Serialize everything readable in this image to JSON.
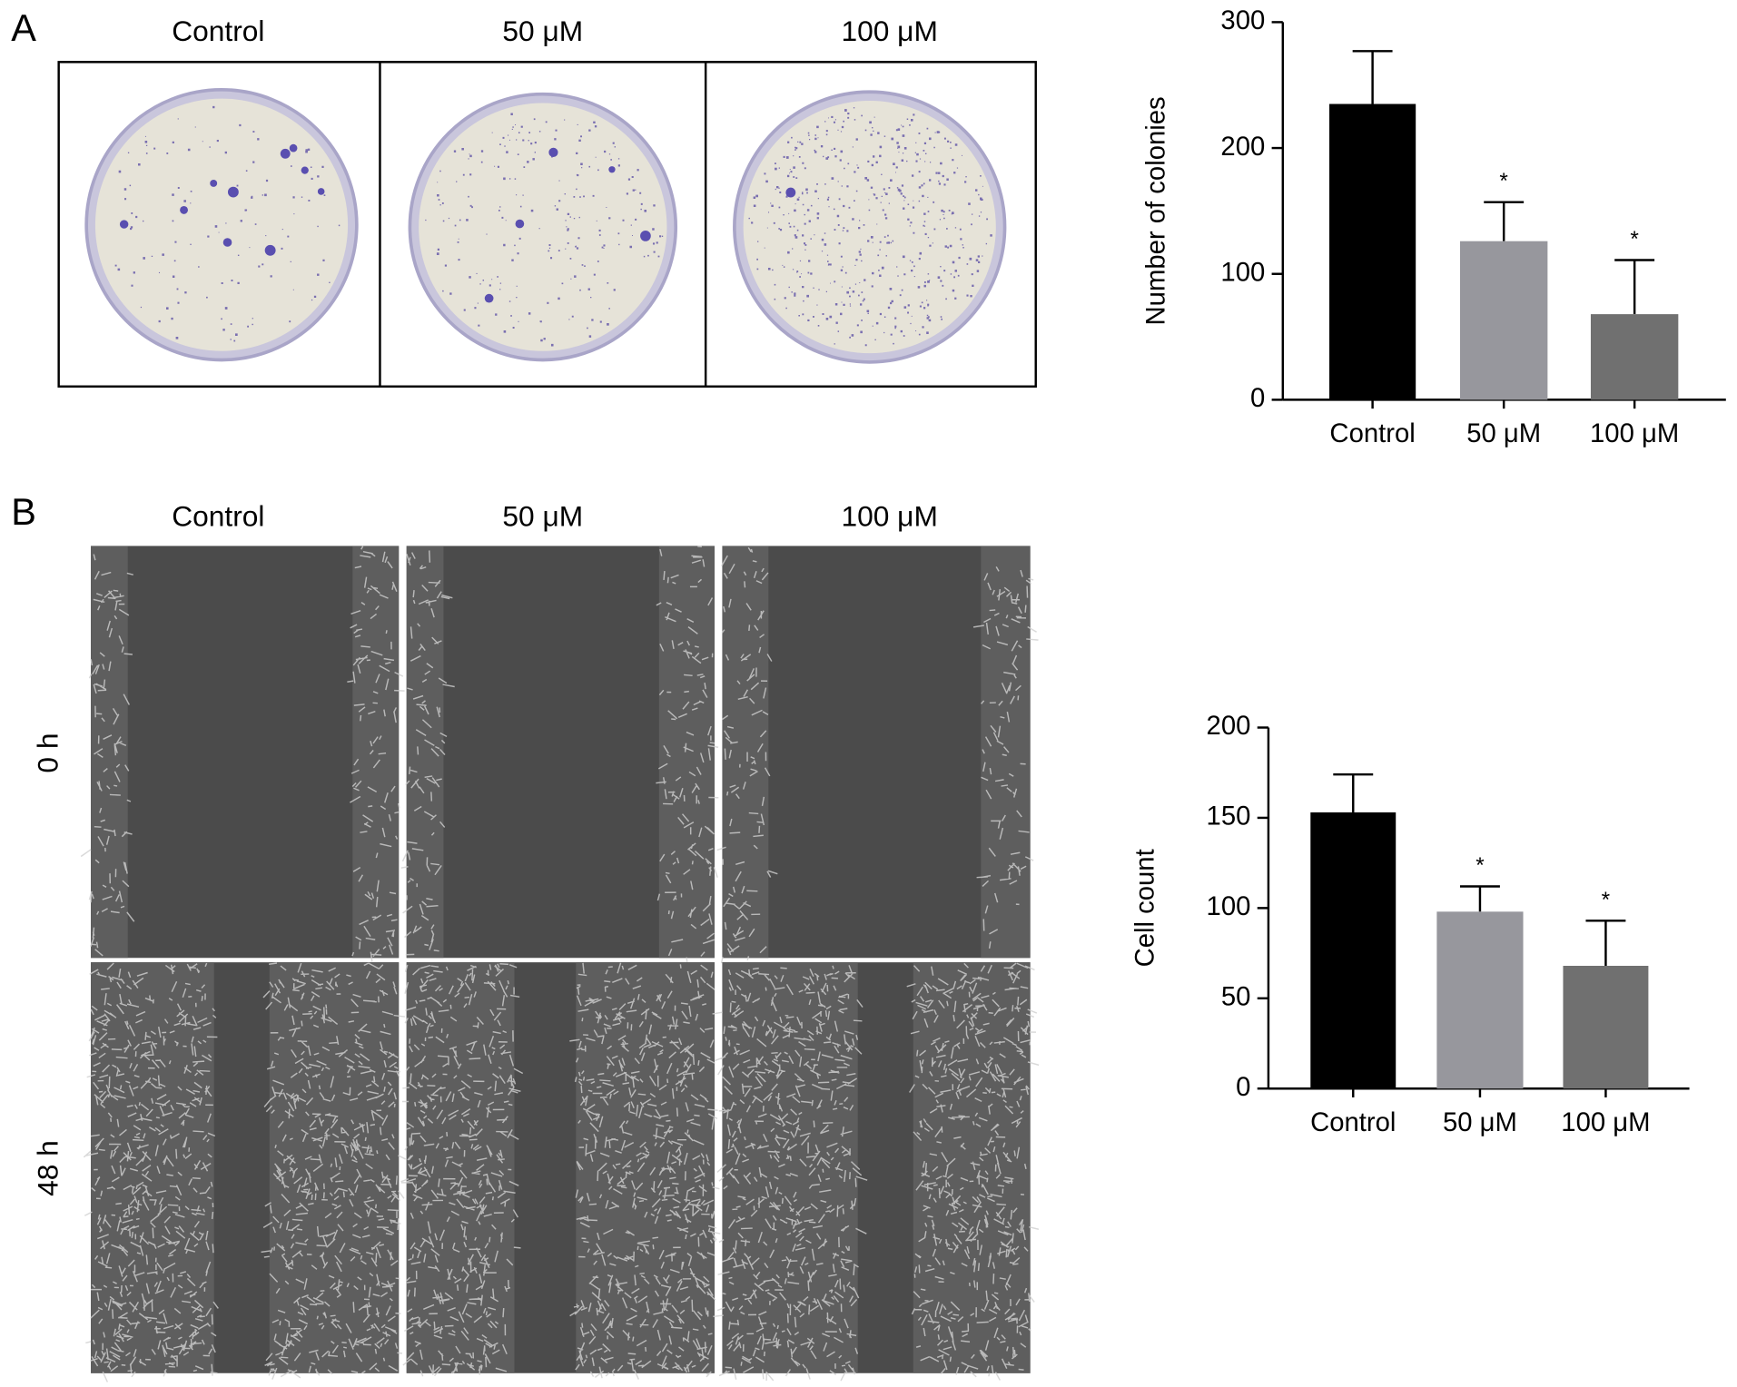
{
  "panels": [
    {
      "label": "A",
      "columns": [
        "Control",
        "50 μM",
        "100 μM"
      ]
    },
    {
      "label": "B",
      "columns": [
        "Control",
        "50 μM",
        "100 μM"
      ],
      "rows": [
        "0 h",
        "48 h"
      ]
    }
  ],
  "chart_data": [
    {
      "type": "bar",
      "y_label": "Number of colonies",
      "categories": [
        "Control",
        "50 μM",
        "100 μM"
      ],
      "values": [
        235,
        126,
        68
      ],
      "errors": [
        42,
        31,
        43
      ],
      "colors": [
        "#000000",
        "#97979d",
        "#707070"
      ],
      "annotations": [
        {
          "text": "*",
          "index": 1
        },
        {
          "text": "*",
          "index": 2
        }
      ],
      "ylim": [
        0,
        300
      ],
      "yticks": [
        0,
        100,
        200,
        300
      ]
    },
    {
      "type": "bar",
      "y_label": "Cell count",
      "categories": [
        "Control",
        "50 μM",
        "100 μM"
      ],
      "values": [
        153,
        98,
        68
      ],
      "errors": [
        21,
        14,
        25
      ],
      "colors": [
        "#000000",
        "#97979d",
        "#707070"
      ],
      "annotations": [
        {
          "text": "*",
          "index": 1
        },
        {
          "text": "*",
          "index": 2
        }
      ],
      "ylim": [
        0,
        200
      ],
      "yticks": [
        0,
        50,
        100,
        150,
        200
      ]
    }
  ]
}
